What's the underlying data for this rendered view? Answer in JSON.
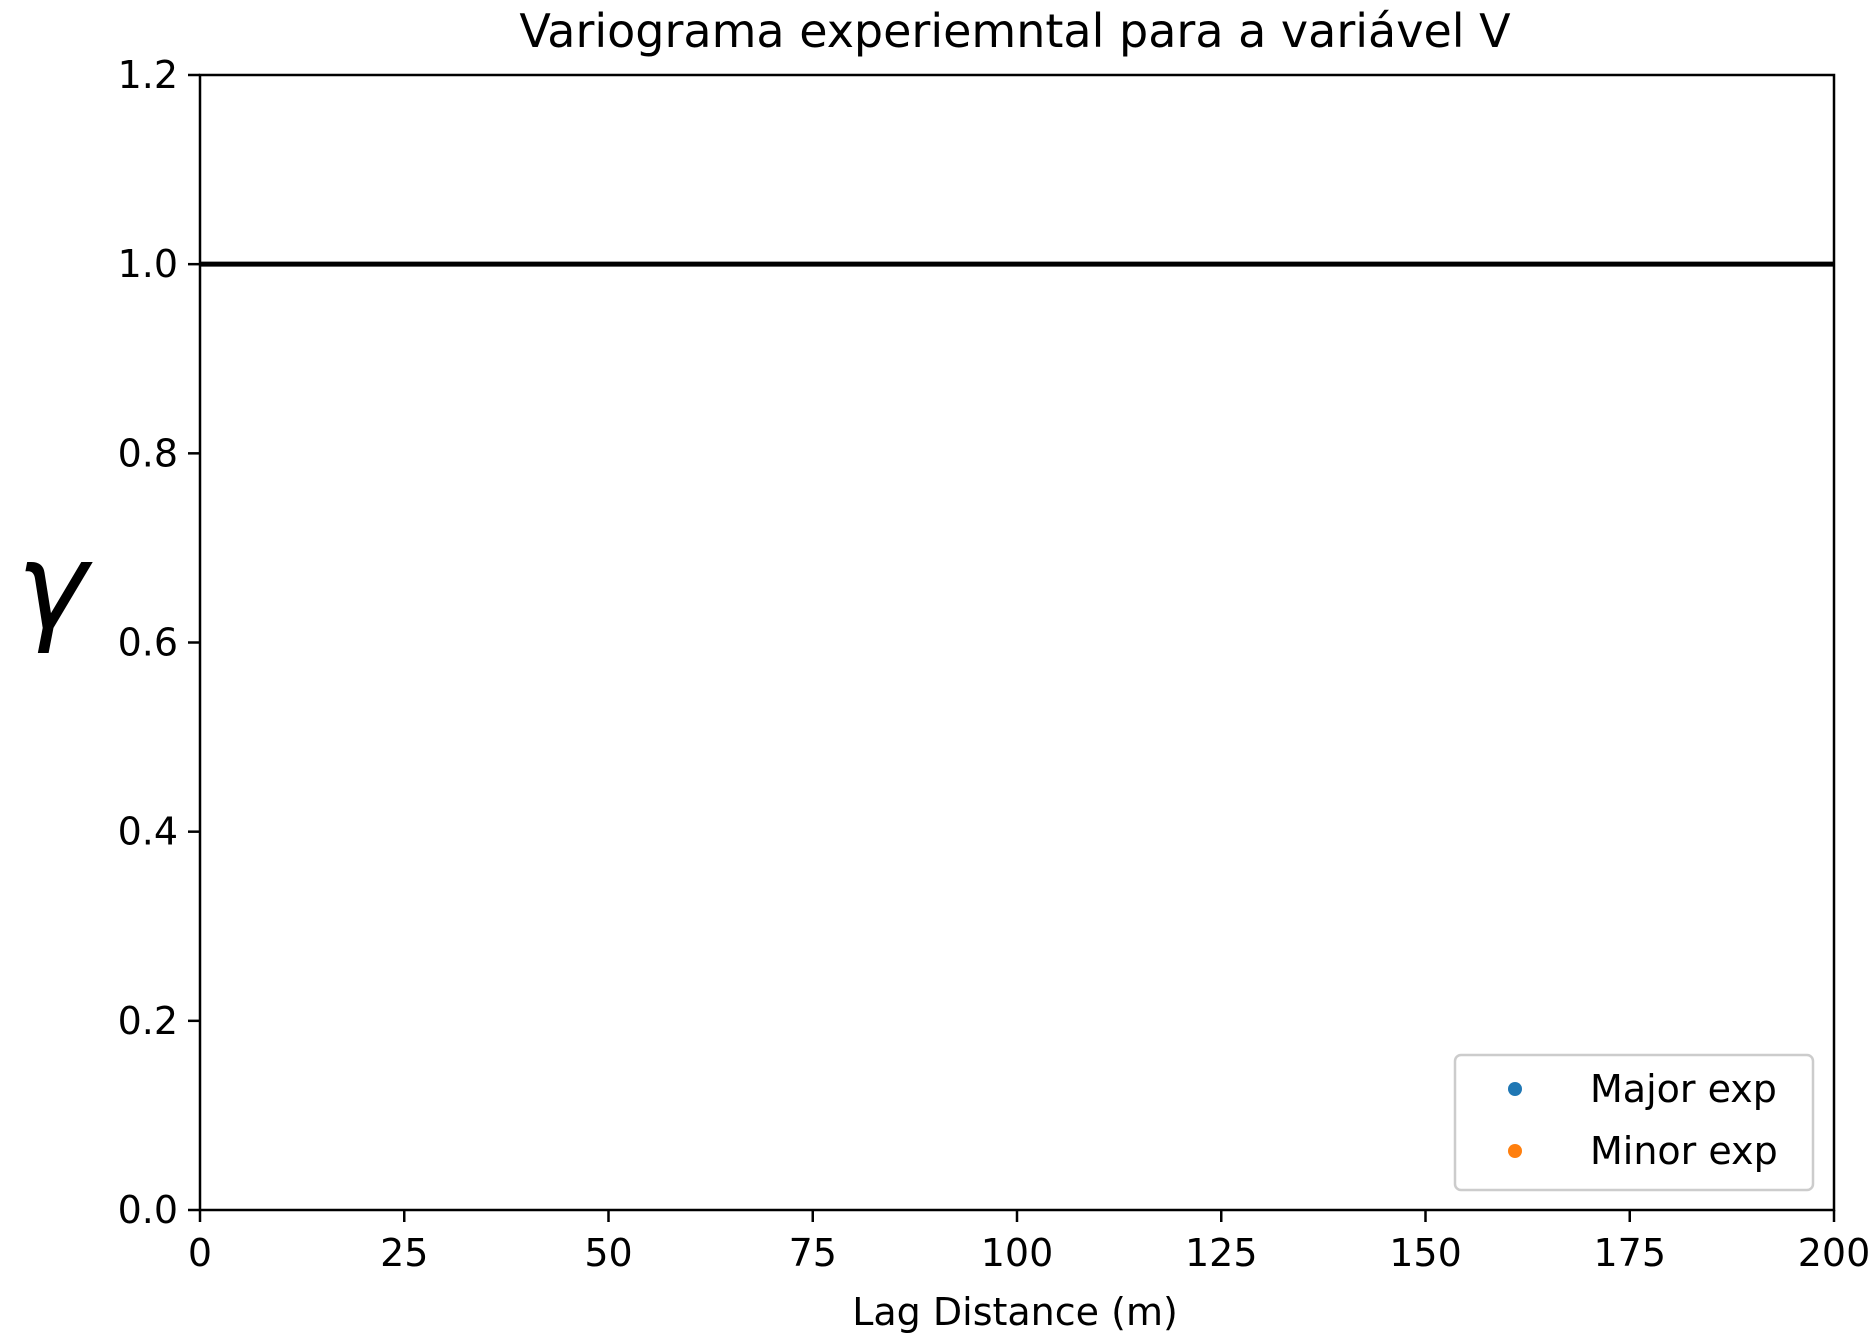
{
  "chart_data": {
    "type": "scatter",
    "title": "Variograma experiemntal para a variável V",
    "xlabel": "Lag Distance (m)",
    "ylabel": "γ",
    "xlim": [
      0,
      200
    ],
    "ylim": [
      0,
      1.2
    ],
    "xticks": [
      0,
      25,
      50,
      75,
      100,
      125,
      150,
      175,
      200
    ],
    "yticks": [
      0.0,
      0.2,
      0.4,
      0.6,
      0.8,
      1.0,
      1.2
    ],
    "xtick_labels": [
      "0",
      "25",
      "50",
      "75",
      "100",
      "125",
      "150",
      "175",
      "200"
    ],
    "ytick_labels": [
      "0.0",
      "0.2",
      "0.4",
      "0.6",
      "0.8",
      "1.0",
      "1.2"
    ],
    "grid": false,
    "legend_position": "lower-right",
    "series": [
      {
        "name": "Major exp",
        "color": "#1f77b4",
        "marker": "dot",
        "x": [],
        "y": []
      },
      {
        "name": "Minor exp",
        "color": "#ff7f0e",
        "marker": "dot",
        "x": [],
        "y": []
      }
    ],
    "reference_lines": [
      {
        "orientation": "horizontal",
        "y": 1.0,
        "color": "#000000"
      }
    ]
  }
}
